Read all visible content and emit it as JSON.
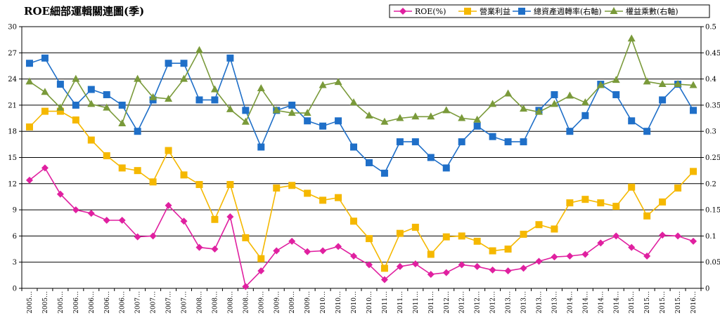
{
  "chart_data": {
    "type": "line",
    "title": "ROE細部運輯關連圖(季)",
    "xlabel": "",
    "ylabel_left": "",
    "ylabel_right": "",
    "ylim_left": [
      0,
      30
    ],
    "yticks_left": [
      "0",
      "3",
      "6",
      "9",
      "12",
      "15",
      "18",
      "21",
      "24",
      "27",
      "30"
    ],
    "ylim_right": [
      0,
      0.5
    ],
    "yticks_right": [
      "0",
      "0.05",
      "0.1",
      "0.15",
      "0.2",
      "0.25",
      "0.3",
      "0.35",
      "0.4",
      "0.45",
      "0.5"
    ],
    "grid": true,
    "legend_position": "top-right",
    "categories": [
      "2005…",
      "2005…",
      "2005…",
      "2006…",
      "2006…",
      "2006…",
      "2006…",
      "2007…",
      "2007…",
      "2007…",
      "2007…",
      "2008…",
      "2008…",
      "2008…",
      "2008…",
      "2009…",
      "2009…",
      "2009…",
      "2009…",
      "2010…",
      "2010…",
      "2010…",
      "2010…",
      "2011…",
      "2011…",
      "2011…",
      "2011…",
      "2012…",
      "2012…",
      "2012…",
      "2012…",
      "2013…",
      "2013…",
      "2013…",
      "2013…",
      "2014…",
      "2014…",
      "2014…",
      "2014…",
      "2015…",
      "2015…",
      "2015…",
      "2015…",
      "2016…"
    ],
    "series": [
      {
        "name": "ROE(%)",
        "axis": "left",
        "marker": "diamond",
        "color": "#E020A0",
        "values": [
          12.4,
          13.8,
          10.8,
          9.0,
          8.6,
          7.8,
          7.8,
          5.9,
          6.0,
          9.5,
          7.7,
          4.7,
          4.5,
          8.2,
          0.2,
          2.0,
          4.3,
          5.4,
          4.2,
          4.3,
          4.8,
          3.7,
          2.7,
          1.0,
          2.5,
          2.8,
          1.6,
          1.8,
          2.7,
          2.5,
          2.1,
          2.0,
          2.3,
          3.1,
          3.6,
          3.7,
          3.9,
          5.2,
          6.0,
          4.7,
          3.7,
          6.1,
          6.0,
          5.4
        ]
      },
      {
        "name": "營業利益",
        "axis": "left",
        "marker": "square",
        "color": "#F5B800",
        "values": [
          18.5,
          20.3,
          20.3,
          19.3,
          17.0,
          15.2,
          13.8,
          13.5,
          12.2,
          15.8,
          13.0,
          11.9,
          7.9,
          11.9,
          5.8,
          3.4,
          11.5,
          11.8,
          10.9,
          10.1,
          10.4,
          7.7,
          5.7,
          2.3,
          6.3,
          7.0,
          3.9,
          5.9,
          6.0,
          5.4,
          4.3,
          4.5,
          6.2,
          7.3,
          6.8,
          9.8,
          10.2,
          9.8,
          9.4,
          11.6,
          8.3,
          9.9,
          11.5,
          13.4
        ]
      },
      {
        "name": "總資產週轉率(右軸)",
        "axis": "right",
        "marker": "square",
        "color": "#1F6FC8",
        "values": [
          0.43,
          0.44,
          0.39,
          0.35,
          0.38,
          0.37,
          0.35,
          0.3,
          0.36,
          0.43,
          0.43,
          0.36,
          0.36,
          0.44,
          0.34,
          0.27,
          0.34,
          0.35,
          0.32,
          0.31,
          0.32,
          0.27,
          0.24,
          0.22,
          0.28,
          0.28,
          0.25,
          0.23,
          0.28,
          0.31,
          0.29,
          0.28,
          0.28,
          0.34,
          0.37,
          0.3,
          0.33,
          0.39,
          0.37,
          0.32,
          0.3,
          0.36,
          0.39,
          0.34
        ]
      },
      {
        "name": "權益乘數(右軸)",
        "axis": "right",
        "marker": "triangle",
        "color": "#7A9A3A",
        "values": [
          0.395,
          0.375,
          0.345,
          0.4,
          0.352,
          0.345,
          0.315,
          0.4,
          0.365,
          0.362,
          0.4,
          0.455,
          0.38,
          0.342,
          0.318,
          0.382,
          0.34,
          0.335,
          0.335,
          0.388,
          0.394,
          0.355,
          0.33,
          0.318,
          0.325,
          0.328,
          0.328,
          0.34,
          0.325,
          0.322,
          0.352,
          0.372,
          0.343,
          0.337,
          0.352,
          0.368,
          0.355,
          0.388,
          0.398,
          0.477,
          0.395,
          0.39,
          0.39,
          0.388
        ]
      }
    ]
  }
}
